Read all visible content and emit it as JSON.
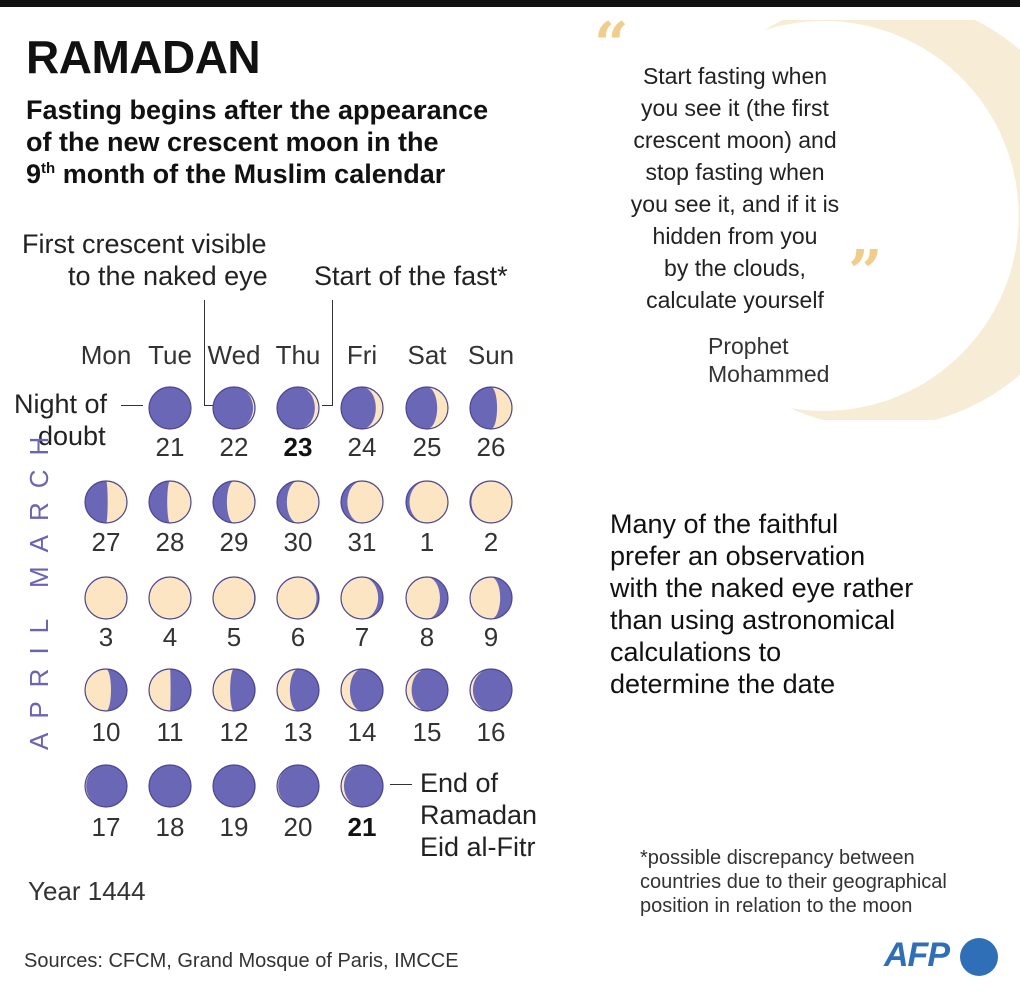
{
  "title": "RAMADAN",
  "subtitle": {
    "line1": "Fasting begins after the appearance",
    "line2": "of the new crescent moon in the",
    "line3_num": "9",
    "line3_sup": "th",
    "line3_rest": " month of the Muslim calendar"
  },
  "labels": {
    "first_crescent_1": "First crescent visible",
    "first_crescent_2": "to the naked eye",
    "start_fast": "Start of the fast*",
    "night_of": "Night of",
    "doubt": "doubt",
    "end_of": "End of",
    "ramadan": "Ramadan",
    "eid": "Eid al-Fitr"
  },
  "days": [
    "Mon",
    "Tue",
    "Wed",
    "Thu",
    "Fri",
    "Sat",
    "Sun"
  ],
  "months": {
    "march": "MARCH",
    "april": "APRIL"
  },
  "calendar": [
    [
      "",
      "21",
      "22",
      "23",
      "24",
      "25",
      "26"
    ],
    [
      "27",
      "28",
      "29",
      "30",
      "31",
      "1",
      "2"
    ],
    [
      "3",
      "4",
      "5",
      "6",
      "7",
      "8",
      "9"
    ],
    [
      "10",
      "11",
      "12",
      "13",
      "14",
      "15",
      "16"
    ],
    [
      "17",
      "18",
      "19",
      "20",
      "21",
      "",
      ""
    ]
  ],
  "bold_days": [
    "0-3",
    "4-4"
  ],
  "colors": {
    "moon_dark": "#6b67b7",
    "moon_light": "#fbe5c2",
    "moon_outline": "#4a4690",
    "accent": "#f0cd8a",
    "afp": "#2f6fb8"
  },
  "quote": {
    "lines": [
      "Start fasting when",
      "you see it (the first",
      "crescent moon) and",
      "stop fasting when",
      "you see it, and if it is",
      "hidden from you",
      "by the clouds,",
      "calculate yourself"
    ],
    "open_mark": "“",
    "close_mark": "”",
    "attribution_1": "Prophet",
    "attribution_2": "Mohammed"
  },
  "side_text": [
    "Many of the faithful",
    "prefer an observation",
    "with the naked eye rather",
    "than using astronomical",
    "calculations to",
    "determine the date"
  ],
  "footnote": [
    "*possible discrepancy between",
    "countries due to their geographical",
    "position in relation to the moon"
  ],
  "year": "Year 1444",
  "sources": "Sources: CFCM, Grand Mosque of Paris, IMCCE",
  "logo": "AFP"
}
